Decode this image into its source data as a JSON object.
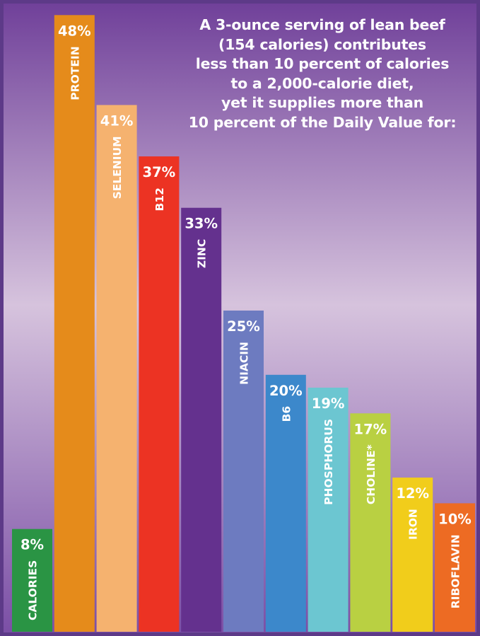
{
  "headline": {
    "line1": "A 3-ounce serving of lean beef",
    "line2": "(154 calories) contributes",
    "line3": "less than 10 percent of calories",
    "line4": "to a 2,000-calorie diet,",
    "line5": "yet it supplies more than",
    "line6": "10 percent of the Daily Value for:"
  },
  "colors": {
    "background_top": "#6f3f99",
    "background_middle": "#d6c3dd",
    "background_bottom": "#7a4ea5",
    "frame": "#5d3a88",
    "text": "#ffffff"
  },
  "chart_data": {
    "type": "bar",
    "title": "",
    "xlabel": "",
    "ylabel": "",
    "grid": false,
    "categories": [
      "CALORIES",
      "PROTEIN",
      "SELENIUM",
      "B12",
      "ZINC",
      "NIACIN",
      "B6",
      "PHOSPHORUS",
      "CHOLINE*",
      "IRON",
      "RIBOFLAVIN"
    ],
    "values": [
      8,
      48,
      41,
      37,
      33,
      25,
      20,
      19,
      17,
      12,
      10
    ],
    "value_labels": [
      "8%",
      "48%",
      "41%",
      "37%",
      "33%",
      "25%",
      "20%",
      "19%",
      "17%",
      "12%",
      "10%"
    ],
    "bar_colors": [
      "#2a9444",
      "#e58b1b",
      "#f5b26f",
      "#ec3323",
      "#64318e",
      "#6d7bc0",
      "#3c88cb",
      "#6cc6d1",
      "#b9d042",
      "#f1cd1b",
      "#ed6b23"
    ]
  }
}
